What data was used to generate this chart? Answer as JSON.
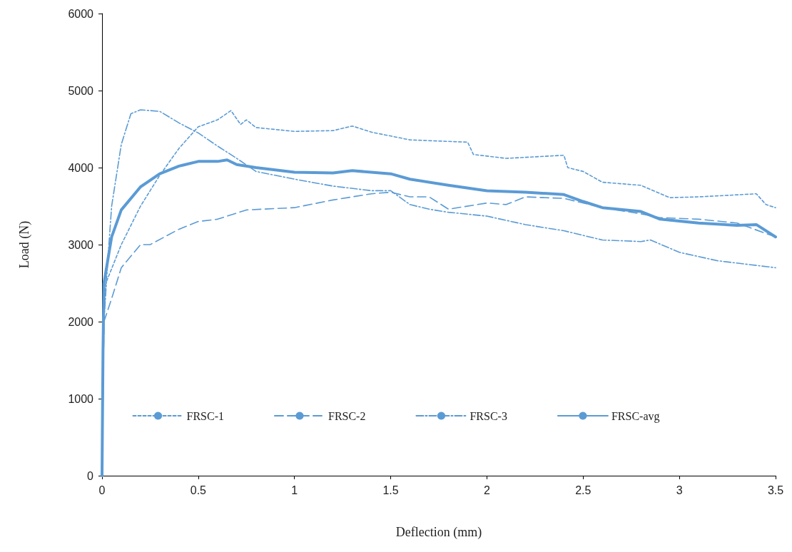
{
  "chart_data": {
    "type": "line",
    "xlabel": "Deflection (mm)",
    "ylabel": "Load (N)",
    "xlim": [
      0,
      3.5
    ],
    "xticks": [
      0,
      0.5,
      1,
      1.5,
      2,
      2.5,
      3,
      3.5
    ],
    "ylim": [
      0,
      6000
    ],
    "yticks": [
      0,
      1000,
      2000,
      3000,
      4000,
      5000,
      6000
    ],
    "grid": false,
    "legend": "bottom",
    "marker": "none",
    "series": [
      {
        "name": "FRSC-1",
        "color": "#5b9bd5",
        "line_style": "dotted",
        "x": [
          0,
          0.005,
          0.02,
          0.1,
          0.2,
          0.3,
          0.4,
          0.5,
          0.6,
          0.67,
          0.72,
          0.75,
          0.8,
          1.0,
          1.2,
          1.3,
          1.4,
          1.6,
          1.9,
          1.93,
          2.1,
          2.4,
          2.42,
          2.5,
          2.6,
          2.8,
          2.95,
          3.1,
          3.4,
          3.45,
          3.5
        ],
        "values": [
          0,
          1800,
          2500,
          3000,
          3500,
          3900,
          4250,
          4530,
          4620,
          4740,
          4560,
          4620,
          4520,
          4470,
          4480,
          4540,
          4460,
          4360,
          4330,
          4170,
          4120,
          4160,
          4000,
          3950,
          3810,
          3770,
          3610,
          3620,
          3660,
          3520,
          3480
        ]
      },
      {
        "name": "FRSC-2",
        "color": "#5b9bd5",
        "line_style": "dashed",
        "x": [
          0,
          0.01,
          0.05,
          0.1,
          0.2,
          0.25,
          0.4,
          0.5,
          0.6,
          0.75,
          1.0,
          1.2,
          1.4,
          1.5,
          1.6,
          1.7,
          1.8,
          2.0,
          2.1,
          2.2,
          2.4,
          2.6,
          2.8,
          2.9,
          3.1,
          3.3,
          3.5
        ],
        "values": [
          0,
          2000,
          2300,
          2700,
          3000,
          3000,
          3200,
          3300,
          3330,
          3450,
          3480,
          3580,
          3660,
          3680,
          3620,
          3620,
          3460,
          3540,
          3520,
          3620,
          3600,
          3480,
          3400,
          3350,
          3330,
          3280,
          3100
        ]
      },
      {
        "name": "FRSC-3",
        "color": "#5b9bd5",
        "line_style": "dashdot",
        "x": [
          0,
          0.01,
          0.03,
          0.05,
          0.1,
          0.15,
          0.2,
          0.3,
          0.4,
          0.5,
          0.6,
          0.7,
          0.8,
          1.0,
          1.2,
          1.4,
          1.5,
          1.6,
          1.7,
          1.8,
          2.0,
          2.2,
          2.4,
          2.6,
          2.8,
          2.85,
          3.0,
          3.2,
          3.5
        ],
        "values": [
          0,
          2000,
          2800,
          3500,
          4300,
          4700,
          4750,
          4730,
          4580,
          4450,
          4280,
          4120,
          3950,
          3850,
          3760,
          3700,
          3700,
          3520,
          3460,
          3420,
          3370,
          3260,
          3180,
          3060,
          3040,
          3060,
          2900,
          2790,
          2700
        ]
      },
      {
        "name": "FRSC-avg",
        "color": "#5b9bd5",
        "line_style": "solid",
        "x": [
          0,
          0.005,
          0.01,
          0.03,
          0.05,
          0.1,
          0.2,
          0.3,
          0.4,
          0.5,
          0.6,
          0.65,
          0.7,
          0.8,
          1.0,
          1.2,
          1.3,
          1.5,
          1.6,
          1.8,
          2.0,
          2.2,
          2.4,
          2.5,
          2.6,
          2.8,
          2.9,
          3.1,
          3.3,
          3.4,
          3.5
        ],
        "values": [
          0,
          1600,
          2500,
          2800,
          3100,
          3450,
          3750,
          3920,
          4020,
          4080,
          4080,
          4100,
          4040,
          4000,
          3940,
          3930,
          3960,
          3920,
          3850,
          3770,
          3700,
          3680,
          3650,
          3560,
          3480,
          3430,
          3330,
          3280,
          3250,
          3260,
          3100
        ]
      }
    ]
  }
}
